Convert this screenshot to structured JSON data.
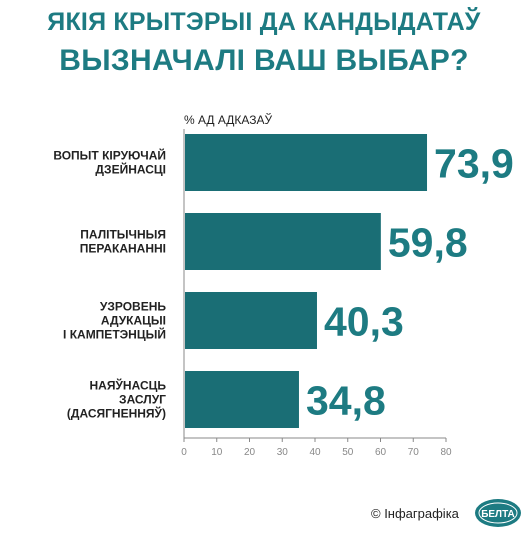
{
  "title_line1": "ЯКІЯ КРЫТЭРЫІ ДА КАНДЫДАТАЎ",
  "title_line2": "ВЫЗНАЧАЛІ ВАШ ВЫБАР?",
  "footer": "© Інфаграфіка",
  "logo_text": "БЕЛТА",
  "colors": {
    "accent": "#1d7b82",
    "bar": "#1a6e75",
    "text": "#222222",
    "axis": "#888888"
  },
  "chart_data": {
    "type": "bar",
    "orientation": "horizontal",
    "ylabel": "% АД АДКАЗАЎ",
    "categories": [
      [
        "ВОПЫТ КІРУЮЧАЙ",
        "ДЗЕЙНАСЦІ"
      ],
      [
        "ПАЛІТЫЧНЫЯ",
        "ПЕРАКАНАННІ"
      ],
      [
        "УЗРОВЕНЬ",
        "АДУКАЦЫІ",
        "І КАМПЕТЭНЦЫЙ"
      ],
      [
        "НАЯЎНАСЦЬ",
        "ЗАСЛУГ",
        "(ДАСЯГНЕННЯЎ)"
      ]
    ],
    "values": [
      73.9,
      59.8,
      40.3,
      34.8
    ],
    "value_labels": [
      "73,9",
      "59,8",
      "40,3",
      "34,8"
    ],
    "xlim": [
      0,
      80
    ],
    "xticks": [
      "0",
      "10",
      "20",
      "30",
      "40",
      "50",
      "60",
      "70",
      "80"
    ],
    "grid": false,
    "legend": "none"
  }
}
